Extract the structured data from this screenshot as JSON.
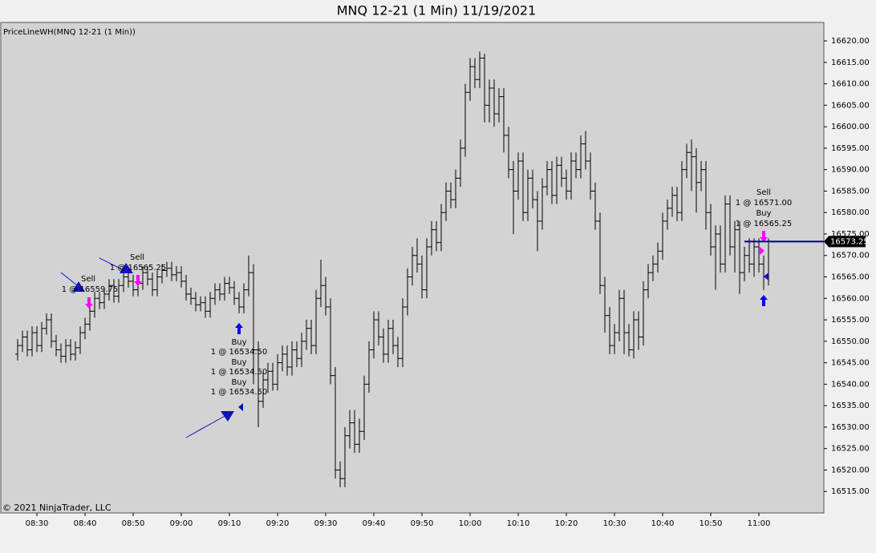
{
  "chart_data": {
    "type": "ohlc",
    "title": "MNQ 12-21 (1 Min)  11/19/2021",
    "indicator": "PriceLineWH(MNQ 12-21 (1 Min))",
    "copyright": "© 2021 NinjaTrader, LLC",
    "color": "#000000",
    "price_line_color": "#00008b",
    "ylim": [
      16510,
      16624.3
    ],
    "yticks": [
      {
        "value": 16515,
        "label": "16515.00"
      },
      {
        "value": 16520,
        "label": "16520.00"
      },
      {
        "value": 16525,
        "label": "16525.00"
      },
      {
        "value": 16530,
        "label": "16530.00"
      },
      {
        "value": 16535,
        "label": "16535.00"
      },
      {
        "value": 16540,
        "label": "16540.00"
      },
      {
        "value": 16545,
        "label": "16545.00"
      },
      {
        "value": 16550,
        "label": "16550.00"
      },
      {
        "value": 16555,
        "label": "16555.00"
      },
      {
        "value": 16560,
        "label": "16560.00"
      },
      {
        "value": 16565,
        "label": "16565.00"
      },
      {
        "value": 16570,
        "label": "16570.00"
      },
      {
        "value": 16575,
        "label": "16575.00"
      },
      {
        "value": 16580,
        "label": "16580.00"
      },
      {
        "value": 16585,
        "label": "16585.00"
      },
      {
        "value": 16590,
        "label": "16590.00"
      },
      {
        "value": 16595,
        "label": "16595.00"
      },
      {
        "value": 16600,
        "label": "16600.00"
      },
      {
        "value": 16605,
        "label": "16605.00"
      },
      {
        "value": 16610,
        "label": "16610.00"
      },
      {
        "value": 16615,
        "label": "16615.00"
      },
      {
        "value": 16620,
        "label": "16620.00"
      }
    ],
    "categories": [
      null,
      null,
      null,
      null,
      "08:30",
      null,
      null,
      null,
      null,
      null,
      null,
      null,
      null,
      null,
      "08:40",
      null,
      null,
      null,
      null,
      null,
      null,
      null,
      null,
      null,
      "08:50",
      null,
      null,
      null,
      null,
      null,
      null,
      null,
      null,
      null,
      "09:00",
      null,
      null,
      null,
      null,
      null,
      null,
      null,
      null,
      null,
      "09:10",
      null,
      null,
      null,
      null,
      null,
      null,
      null,
      null,
      null,
      "09:20",
      null,
      null,
      null,
      null,
      null,
      null,
      null,
      null,
      null,
      "09:30",
      null,
      null,
      null,
      null,
      null,
      null,
      null,
      null,
      null,
      "09:40",
      null,
      null,
      null,
      null,
      null,
      null,
      null,
      null,
      null,
      "09:50",
      null,
      null,
      null,
      null,
      null,
      null,
      null,
      null,
      null,
      "10:00",
      null,
      null,
      null,
      null,
      null,
      null,
      null,
      null,
      null,
      "10:10",
      null,
      null,
      null,
      null,
      null,
      null,
      null,
      null,
      null,
      "10:20",
      null,
      null,
      null,
      null,
      null,
      null,
      null,
      null,
      null,
      "10:30",
      null,
      null,
      null,
      null,
      null,
      null,
      null,
      null,
      null,
      "10:40",
      null,
      null,
      null,
      null,
      null,
      null,
      null,
      null,
      null,
      "10:50",
      null,
      null,
      null,
      null,
      null,
      null,
      null,
      null,
      null,
      "11:00",
      null,
      null
    ],
    "open": [
      16547,
      16549,
      16551,
      16548,
      16552,
      16549,
      16553,
      16555,
      16550,
      16548,
      16546.5,
      16549,
      16547,
      16548.5,
      16552,
      16554,
      16557,
      16560,
      16559,
      16561,
      16563,
      16560.5,
      16563,
      16565,
      16564,
      16562,
      16563.5,
      16566,
      16564.5,
      16562,
      16565,
      16566.5,
      16567,
      16565.5,
      16566,
      16564,
      16561,
      16560,
      16558.5,
      16559,
      16557,
      16560,
      16562,
      16561,
      16563.5,
      16562.5,
      16560,
      16558,
      16562,
      16566,
      16548,
      16536,
      16541,
      16543,
      16540,
      16545,
      16547,
      16544,
      16548,
      16546,
      16550,
      16553,
      16549,
      16560,
      16563,
      16558,
      16542,
      16520,
      16518,
      16528,
      16531,
      16526,
      16529,
      16540,
      16548,
      16555,
      16551,
      16547,
      16553,
      16549,
      16546,
      16558,
      16565,
      16570,
      16568,
      16562,
      16572,
      16576,
      16573,
      16580,
      16585,
      16583,
      16588,
      16595,
      16608,
      16614,
      16611,
      16616,
      16605,
      16609,
      16603,
      16607,
      16598,
      16590,
      16585,
      16592,
      16580,
      16588,
      16583,
      16578,
      16586,
      16590,
      16584,
      16591,
      16588,
      16585,
      16592,
      16590,
      16596,
      16592,
      16585,
      16578,
      16563,
      16556,
      16549,
      16552,
      16560,
      16552,
      16548,
      16555,
      16551,
      16562,
      16566,
      16568,
      16571,
      16578,
      16581,
      16584,
      16580,
      16590,
      16594,
      16593,
      16587,
      16590,
      16580,
      16572,
      16575,
      16568,
      16582,
      16572,
      16576,
      16566,
      16570,
      16568,
      16572,
      16568,
      16565
    ],
    "high": [
      16550.5,
      16552.5,
      16552.5,
      16553.5,
      16553.5,
      16554.5,
      16556.5,
      16556.5,
      16551.5,
      16549.5,
      16550.5,
      16550.5,
      16550,
      16553.5,
      16555.5,
      16558.5,
      16561.5,
      16561.5,
      16562.5,
      16564.5,
      16564.5,
      16564.5,
      16566.5,
      16566.5,
      16565.5,
      16565,
      16567.5,
      16567.5,
      16566,
      16566.5,
      16568,
      16568.5,
      16568.5,
      16567.5,
      16567.5,
      16565.5,
      16562.5,
      16561.5,
      16560.5,
      16560.5,
      16561.5,
      16563.5,
      16563.5,
      16565,
      16565,
      16564,
      16561.5,
      16563.5,
      16570,
      16568,
      16550,
      16543,
      16545,
      16545,
      16547,
      16549,
      16549,
      16550,
      16550,
      16552,
      16555,
      16555,
      16562,
      16569,
      16565,
      16560,
      16544,
      16522,
      16530,
      16534,
      16534,
      16532,
      16542,
      16550,
      16557,
      16557,
      16553,
      16555,
      16555,
      16551,
      16560,
      16567,
      16572,
      16574,
      16570,
      16574,
      16578,
      16578,
      16582,
      16587,
      16587,
      16590,
      16597,
      16610,
      16616,
      16616,
      16617.5,
      16617,
      16611,
      16611,
      16609,
      16609,
      16600,
      16592,
      16594,
      16594,
      16590,
      16590,
      16585,
      16588,
      16592,
      16592,
      16593,
      16593,
      16590,
      16594,
      16594,
      16598,
      16599,
      16594,
      16587,
      16580,
      16565,
      16558,
      16554,
      16562,
      16562,
      16554,
      16557,
      16557,
      16564,
      16568,
      16570,
      16573,
      16580,
      16583,
      16586,
      16586,
      16592,
      16596,
      16597,
      16595,
      16592,
      16592,
      16582,
      16577,
      16577,
      16584,
      16584,
      16578,
      16578,
      16572,
      16574,
      16574,
      16574,
      16570,
      16574
    ],
    "low": [
      16545.5,
      16547.5,
      16546.5,
      16546.5,
      16547.5,
      16547.5,
      16551.5,
      16548.5,
      16546.5,
      16545,
      16545,
      16545.5,
      16545.5,
      16547,
      16550.5,
      16552.5,
      16555.5,
      16557.5,
      16557.5,
      16559.5,
      16559,
      16559,
      16561.5,
      16562.5,
      16560.5,
      16560.5,
      16562,
      16563,
      16560.5,
      16560.5,
      16563.5,
      16565,
      16564,
      16564,
      16562.5,
      16559.5,
      16558.5,
      16557,
      16557,
      16555.5,
      16555.5,
      16558.5,
      16559.5,
      16559.5,
      16561,
      16558.5,
      16556.5,
      16556.5,
      16560.5,
      16540,
      16530,
      16534.5,
      16538,
      16538.5,
      16538.5,
      16543,
      16542,
      16542,
      16544,
      16544,
      16548,
      16547,
      16547,
      16558,
      16556,
      16540,
      16518,
      16516,
      16516,
      16525,
      16524,
      16524,
      16527,
      16538,
      16546,
      16549,
      16545,
      16545,
      16547,
      16544,
      16544,
      16556,
      16563,
      16566,
      16560,
      16560,
      16570,
      16571,
      16571,
      16578,
      16581,
      16581,
      16586,
      16593,
      16606,
      16609,
      16609,
      16601,
      16601,
      16600,
      16601,
      16594,
      16588,
      16575,
      16583,
      16578,
      16578,
      16581,
      16571,
      16576,
      16584,
      16582,
      16582,
      16586,
      16583,
      16583,
      16588,
      16588,
      16590,
      16583,
      16576,
      16561,
      16552,
      16547,
      16547,
      16550,
      16547,
      16546.5,
      16546,
      16548,
      16549,
      16560,
      16564,
      16566,
      16569,
      16576,
      16579,
      16578,
      16578,
      16588,
      16585,
      16580,
      16585,
      16576,
      16570,
      16562,
      16566,
      16566,
      16570,
      16566,
      16561,
      16564,
      16566,
      16565,
      16566,
      16562,
      16563
    ],
    "close": [
      16549,
      16551,
      16548,
      16552,
      16549,
      16553,
      16555,
      16550,
      16548,
      16546.5,
      16549,
      16547,
      16548.5,
      16552,
      16554,
      16557,
      16560,
      16559,
      16561,
      16563,
      16560.5,
      16563,
      16565,
      16564,
      16562,
      16563.5,
      16566,
      16564.5,
      16562,
      16565,
      16566.5,
      16567,
      16565.5,
      16566,
      16564,
      16561,
      16560,
      16558.5,
      16559,
      16557,
      16560,
      16562,
      16561,
      16563.5,
      16562.5,
      16560,
      16558,
      16562,
      16566,
      16548,
      16536,
      16541,
      16543,
      16540,
      16545,
      16547,
      16544,
      16548,
      16546,
      16550,
      16553,
      16549,
      16560,
      16563,
      16558,
      16542,
      16520,
      16518,
      16528,
      16531,
      16526,
      16529,
      16540,
      16548,
      16555,
      16551,
      16547,
      16553,
      16549,
      16546,
      16558,
      16565,
      16570,
      16568,
      16562,
      16572,
      16576,
      16573,
      16580,
      16585,
      16583,
      16588,
      16595,
      16608,
      16614,
      16611,
      16616,
      16605,
      16609,
      16603,
      16607,
      16598,
      16590,
      16585,
      16592,
      16580,
      16588,
      16583,
      16578,
      16586,
      16590,
      16584,
      16591,
      16588,
      16585,
      16592,
      16590,
      16596,
      16592,
      16585,
      16578,
      16563,
      16556,
      16549,
      16552,
      16560,
      16552,
      16548,
      16555,
      16551,
      16562,
      16566,
      16568,
      16571,
      16578,
      16581,
      16584,
      16580,
      16590,
      16594,
      16593,
      16587,
      16590,
      16580,
      16572,
      16575,
      16568,
      16582,
      16572,
      16576,
      16566,
      16570,
      16568,
      16572,
      16568,
      16565,
      16573.25
    ],
    "annotations": [
      {
        "action": "Sell",
        "fill": "1 @ 16559.75"
      },
      {
        "action": "Sell",
        "fill": "1 @ 16565.25"
      },
      {
        "action": "Buy",
        "fill": "1 @ 16534.50"
      },
      {
        "action": "Buy",
        "fill": "1 @ 16534.50"
      },
      {
        "action": "Buy",
        "fill": "1 @ 16534.50"
      },
      {
        "action": "Sell",
        "fill": "1 @ 16571.00"
      },
      {
        "action": "Buy",
        "fill": "1 @ 16565.25"
      }
    ]
  }
}
